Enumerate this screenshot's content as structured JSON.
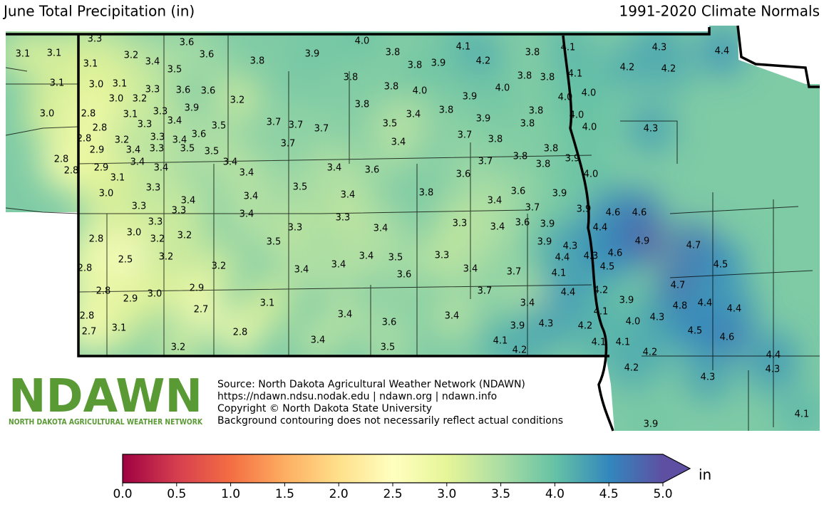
{
  "title": "June Total Precipitation (in)",
  "subtitle": "1991-2020 Climate Normals",
  "stations": {
    "values": [
      3.3,
      3.6,
      4.0,
      3.1,
      3.1,
      3.2,
      3.4,
      3.6,
      3.8,
      3.9,
      3.8,
      4.1,
      4.2,
      3.8,
      3.9,
      3.8,
      4.1,
      4.3,
      4.4,
      4.2,
      4.2,
      3.1,
      3.5,
      3.1,
      3.0,
      3.1,
      3.3,
      3.6,
      3.6,
      3.8,
      3.8,
      4.0,
      4.0,
      3.8,
      3.8,
      4.1,
      3.0,
      3.2,
      3.9,
      4.0,
      4.0,
      3.0,
      2.8,
      3.1,
      3.3,
      3.9,
      3.2,
      3.4,
      3.8,
      3.4,
      3.8,
      3.8,
      4.0,
      2.8,
      2.8,
      3.3,
      3.5,
      3.7,
      3.7,
      3.7,
      3.5,
      3.9,
      3.8,
      4.0,
      4.3,
      3.2,
      3.3,
      3.4,
      3.6,
      3.7,
      3.8,
      2.9,
      3.4,
      3.3,
      3.5,
      3.5,
      3.7,
      3.4,
      3.8,
      2.8,
      2.8,
      2.9,
      3.4,
      3.4,
      3.4,
      3.4,
      3.4,
      3.6,
      3.7,
      3.8,
      3.8,
      3.9,
      3.6,
      4.0,
      3.1,
      3.0,
      3.3,
      3.4,
      3.4,
      3.5,
      3.4,
      3.8,
      3.4,
      3.6,
      3.9,
      3.3,
      3.3,
      3.4,
      3.3,
      3.7,
      3.9,
      4.6,
      4.6,
      3.3,
      2.8,
      3.0,
      3.2,
      3.2,
      3.5,
      3.3,
      3.4,
      3.3,
      3.4,
      3.6,
      3.9,
      4.4,
      3.9,
      4.3,
      4.9,
      4.7,
      2.5,
      3.2,
      3.2,
      3.4,
      3.4,
      3.4,
      3.5,
      3.3,
      4.4,
      4.3,
      4.6,
      4.5,
      4.5,
      2.8,
      3.6,
      3.4,
      3.7,
      4.1,
      2.8,
      2.9,
      3.0,
      2.9,
      3.7,
      4.4,
      4.2,
      3.9,
      4.7,
      3.1,
      2.7,
      3.4,
      3.4,
      4.8,
      4.4,
      4.4,
      4.1,
      2.8,
      3.4,
      3.1,
      2.7,
      2.8,
      3.6,
      3.9,
      4.3,
      4.2,
      4.0,
      4.3,
      4.5,
      4.6,
      3.4,
      4.1,
      4.1,
      4.1,
      3.2,
      3.5,
      4.2,
      4.2,
      4.4,
      4.2,
      4.3,
      4.3,
      4.1,
      3.9
    ],
    "value_labels": [
      "3.3",
      "3.6",
      "4.0",
      "3.1",
      "3.1",
      "3.2",
      "3.4",
      "3.6",
      "3.8",
      "3.9",
      "3.8",
      "4.1",
      "4.2",
      "3.8",
      "3.9",
      "3.8",
      "4.1",
      "4.3",
      "4.4",
      "4.2",
      "4.2",
      "3.1",
      "3.5",
      "3.1",
      "3.0",
      "3.1",
      "3.3",
      "3.6",
      "3.6",
      "3.8",
      "3.8",
      "4.0",
      "4.0",
      "3.8",
      "3.8",
      "4.1",
      "3.0",
      "3.2",
      "3.9",
      "4.0",
      "4.0",
      "3.0",
      "2.8",
      "3.1",
      "3.3",
      "3.9",
      "3.2",
      "3.4",
      "3.8",
      "3.4",
      "3.8",
      "3.8",
      "4.0",
      "2.8",
      "2.8",
      "3.3",
      "3.5",
      "3.7",
      "3.7",
      "3.7",
      "3.5",
      "3.9",
      "3.8",
      "4.0",
      "4.3",
      "3.2",
      "3.3",
      "3.4",
      "3.6",
      "3.7",
      "3.8",
      "2.9",
      "3.4",
      "3.3",
      "3.5",
      "3.5",
      "3.7",
      "3.4",
      "3.8",
      "2.8",
      "2.8",
      "2.9",
      "3.4",
      "3.4",
      "3.4",
      "3.4",
      "3.4",
      "3.6",
      "3.7",
      "3.8",
      "3.8",
      "3.9",
      "3.6",
      "4.0",
      "3.1",
      "3.0",
      "3.3",
      "3.4",
      "3.4",
      "3.5",
      "3.4",
      "3.8",
      "3.4",
      "3.6",
      "3.9",
      "3.3",
      "3.3",
      "3.4",
      "3.3",
      "3.7",
      "3.9",
      "4.6",
      "4.6",
      "3.3",
      "2.8",
      "3.0",
      "3.2",
      "3.2",
      "3.5",
      "3.3",
      "3.4",
      "3.3",
      "3.4",
      "3.6",
      "3.9",
      "4.4",
      "3.9",
      "4.3",
      "4.9",
      "4.7",
      "2.5",
      "3.2",
      "3.2",
      "3.4",
      "3.4",
      "3.4",
      "3.5",
      "3.3",
      "4.4",
      "4.3",
      "4.6",
      "4.5",
      "4.5",
      "2.8",
      "3.6",
      "3.4",
      "3.7",
      "4.1",
      "2.8",
      "2.9",
      "3.0",
      "2.9",
      "3.7",
      "4.4",
      "4.2",
      "3.9",
      "4.7",
      "3.1",
      "2.7",
      "3.4",
      "3.4",
      "4.8",
      "4.4",
      "4.4",
      "4.1",
      "2.8",
      "3.4",
      "3.1",
      "2.7",
      "2.8",
      "3.6",
      "3.9",
      "4.3",
      "4.2",
      "4.0",
      "4.3",
      "4.5",
      "4.6",
      "3.4",
      "4.1",
      "4.1",
      "4.1",
      "3.2",
      "3.5",
      "4.2",
      "4.2",
      "4.4",
      "4.2",
      "4.3",
      "4.3",
      "4.1",
      "3.9"
    ]
  },
  "logo": {
    "name": "NDAWN",
    "tagline": "NORTH DAKOTA AGRICULTURAL WEATHER NETWORK"
  },
  "source": [
    "Source: North Dakota Agricultural Weather Network (NDAWN)",
    "https://ndawn.ndsu.nodak.edu | ndawn.org | ndawn.info",
    "Copyright © North Dakota State University",
    "Background contouring does not necessarily reflect actual conditions"
  ],
  "colorbar": {
    "unit": "in",
    "ticks": [
      {
        "value": 0,
        "label": "0.0"
      },
      0.5,
      {
        "value": 1,
        "label": "1.0"
      },
      1.5,
      {
        "value": 2,
        "label": "2.0"
      },
      2.5,
      {
        "value": 3,
        "label": "3.0"
      },
      3.5,
      {
        "value": 4,
        "label": "4.0"
      },
      4.5,
      {
        "value": 5,
        "label": "5.0"
      }
    ],
    "colors": [
      "#9e0142",
      "#d53e4f",
      "#f46d43",
      "#fdae61",
      "#fee08b",
      "#ffffbf",
      "#e6f598",
      "#abdda4",
      "#66c2a5",
      "#3288bd",
      "#5e4fa2"
    ]
  }
}
